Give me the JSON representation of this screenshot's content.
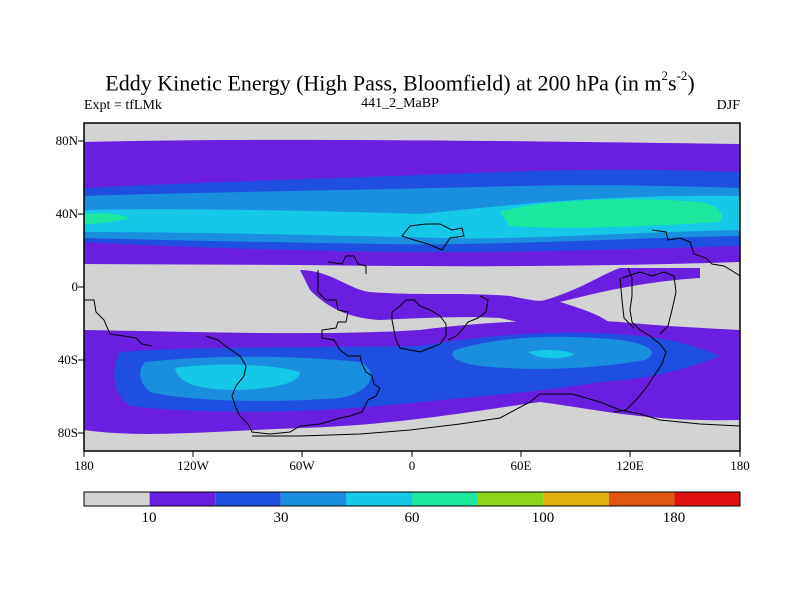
{
  "title": {
    "main": "Eddy Kinetic Energy (High Pass, Bloomfield) at 200 hPa (in m",
    "sup1": "2",
    "mid": "s",
    "sup2": "-2",
    "close": ")"
  },
  "subtitle": {
    "left": "Expt = tfLMk",
    "center": "441_2_MaBP",
    "right": "DJF"
  },
  "lat_labels": [
    "80N",
    "40N",
    "0",
    "40S",
    "80S"
  ],
  "lon_labels": [
    "180",
    "120W",
    "60W",
    "0",
    "60E",
    "120E",
    "180"
  ],
  "colorbar": {
    "colors": [
      "#d3d3d3",
      "#6a1fe0",
      "#1f4fe0",
      "#1a8fe0",
      "#15c8e8",
      "#1ce8a0",
      "#8cd61a",
      "#e0b010",
      "#e0580f",
      "#e01010"
    ],
    "labels": [
      "10",
      "30",
      "60",
      "100",
      "180"
    ]
  }
}
